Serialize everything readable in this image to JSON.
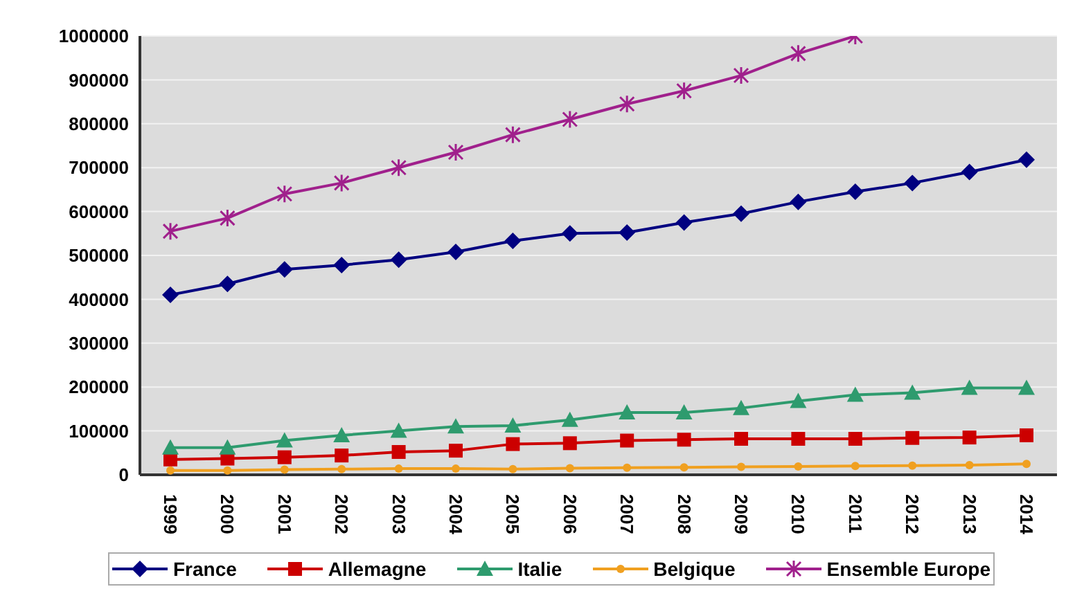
{
  "chart_data": {
    "type": "line",
    "categories": [
      "1999",
      "2000",
      "2001",
      "2002",
      "2003",
      "2004",
      "2005",
      "2006",
      "2007",
      "2008",
      "2009",
      "2010",
      "2011",
      "2012",
      "2013",
      "2014"
    ],
    "series": [
      {
        "name": "France",
        "color": "#000080",
        "marker": "diamond",
        "values": [
          410000,
          435000,
          468000,
          478000,
          490000,
          508000,
          533000,
          550000,
          552000,
          575000,
          595000,
          622000,
          645000,
          665000,
          690000,
          718000
        ]
      },
      {
        "name": "Allemagne",
        "color": "#cc0000",
        "marker": "square",
        "values": [
          35000,
          37000,
          40000,
          44000,
          52000,
          55000,
          70000,
          72000,
          78000,
          80000,
          82000,
          82000,
          82000,
          84000,
          85000,
          90000
        ]
      },
      {
        "name": "Italie",
        "color": "#2e9b6e",
        "marker": "triangle",
        "values": [
          62000,
          62000,
          78000,
          90000,
          100000,
          110000,
          112000,
          125000,
          142000,
          142000,
          152000,
          168000,
          182000,
          187000,
          198000,
          198000
        ]
      },
      {
        "name": "Belgique",
        "color": "#f0a020",
        "marker": "circle",
        "values": [
          10000,
          10000,
          12000,
          13000,
          14000,
          14000,
          13000,
          15000,
          16000,
          17000,
          18000,
          19000,
          20000,
          21000,
          22000,
          25000
        ]
      },
      {
        "name": "Ensemble Europe",
        "color": "#a0208c",
        "marker": "cross",
        "values": [
          555000,
          585000,
          640000,
          665000,
          700000,
          735000,
          775000,
          810000,
          845000,
          875000,
          910000,
          960000,
          1000000,
          null,
          null,
          null
        ]
      }
    ],
    "ylim": [
      0,
      1000000
    ],
    "yticks": [
      0,
      100000,
      200000,
      300000,
      400000,
      500000,
      600000,
      700000,
      800000,
      900000,
      1000000
    ],
    "grid": "y",
    "legend": "bottom"
  }
}
